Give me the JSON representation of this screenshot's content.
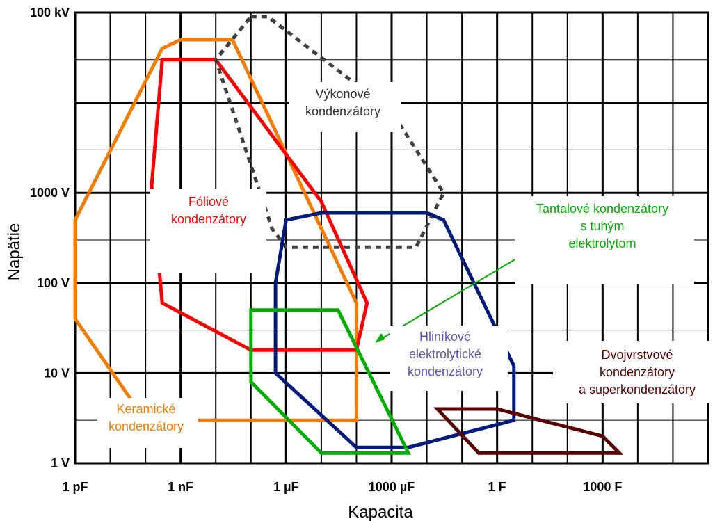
{
  "chart_data": {
    "type": "area",
    "title": "",
    "xlabel": "Kapacita",
    "ylabel": "Napätie",
    "x_scale": "log",
    "y_scale": "log",
    "xlim": [
      1e-12,
      1000000
    ],
    "ylim": [
      1,
      100000
    ],
    "x_ticks": [
      {
        "value": 1e-12,
        "label": "1 pF"
      },
      {
        "value": 1e-09,
        "label": "1 nF"
      },
      {
        "value": 1e-06,
        "label": "1 µF"
      },
      {
        "value": 0.001,
        "label": "1000 µF"
      },
      {
        "value": 1,
        "label": "1 F"
      },
      {
        "value": 1000,
        "label": "1000 F"
      }
    ],
    "y_ticks": [
      {
        "value": 1,
        "label": "1 V"
      },
      {
        "value": 10,
        "label": "10 V"
      },
      {
        "value": 100,
        "label": "100 V"
      },
      {
        "value": 1000,
        "label": "1000 V"
      },
      {
        "value": 100000,
        "label": "100 kV"
      }
    ],
    "grid": true,
    "series": [
      {
        "name": "Keramické kondenzátory",
        "color": "#f57c00",
        "line_style": "solid",
        "points": [
          [
            1e-12,
            500
          ],
          [
            1e-12,
            40
          ],
          [
            1e-10,
            3
          ],
          [
            3e-09,
            3
          ],
          [
            0.0001,
            3
          ],
          [
            0.0001,
            60
          ],
          [
            3e-08,
            50000
          ],
          [
            3e-09,
            50000
          ],
          [
            1e-09,
            50000
          ],
          [
            3e-10,
            40000
          ]
        ]
      },
      {
        "name": "Fóliové kondenzátory",
        "color": "#ff0000",
        "line_style": "solid",
        "points": [
          [
            1.5e-10,
            1200
          ],
          [
            3e-10,
            30000
          ],
          [
            3e-10,
            30000
          ],
          [
            1e-08,
            30000
          ],
          [
            1e-05,
            800
          ],
          [
            0.0002,
            60
          ],
          [
            0.0001,
            18
          ],
          [
            1e-05,
            18
          ],
          [
            1e-07,
            18
          ],
          [
            3e-10,
            60
          ]
        ]
      },
      {
        "name": "Výkonové kondenzátory",
        "color": "#404040",
        "line_style": "dotted",
        "points": [
          [
            1e-07,
            90000
          ],
          [
            3e-07,
            90000
          ],
          [
            0.001,
            8000
          ],
          [
            0.03,
            1000
          ],
          [
            0.005,
            250
          ],
          [
            1e-06,
            250
          ],
          [
            4e-07,
            400
          ],
          [
            1e-08,
            30000
          ]
        ]
      },
      {
        "name": "Hliníkové elektrolytické kondenzátory",
        "color": "#001a80",
        "line_style": "solid",
        "points": [
          [
            1e-06,
            500
          ],
          [
            1e-05,
            600
          ],
          [
            0.01,
            600
          ],
          [
            0.03,
            500
          ],
          [
            3,
            12
          ],
          [
            3,
            3
          ],
          [
            0.003,
            1.5
          ],
          [
            0.0001,
            1.5
          ],
          [
            5e-07,
            10
          ],
          [
            5e-07,
            100
          ]
        ]
      },
      {
        "name": "Tantalové kondenzátory s tuhým elektrolytom",
        "color": "#00b000",
        "line_style": "solid",
        "points": [
          [
            1e-07,
            50
          ],
          [
            3e-05,
            50
          ],
          [
            0.003,
            1.3
          ],
          [
            1e-05,
            1.3
          ],
          [
            1e-07,
            8
          ]
        ]
      },
      {
        "name": "Dvojvrstvové kondenzátory a superkondenzátory",
        "color": "#5a0000",
        "line_style": "solid",
        "points": [
          [
            0.02,
            4
          ],
          [
            1,
            4
          ],
          [
            1000.0,
            2
          ],
          [
            3000.0,
            1.3
          ],
          [
            1.0,
            1.3
          ],
          [
            0.3,
            1.3
          ]
        ]
      }
    ],
    "annotations": [
      {
        "text": "Tantalové kondenzátory",
        "color": "#00b000"
      },
      {
        "text": "s  tuhým",
        "color": "#00b000"
      },
      {
        "text": "elektrolytom",
        "color": "#00b000"
      }
    ]
  },
  "labels": {
    "ceramic": [
      "Keramické",
      "kondenzátory"
    ],
    "film": [
      "Fóliové",
      "kondenzátory"
    ],
    "power": [
      "Výkonové",
      "kondenzátory"
    ],
    "tantalum": [
      "Tantalové kondenzátory",
      "s  tuhým",
      "elektrolytom"
    ],
    "aluminum": [
      "Hliníkové",
      "elektrolytické",
      "kondenzátory"
    ],
    "supercap": [
      "Dvojvrstvové",
      "kondenzátory",
      "a superkondenzátory"
    ]
  }
}
